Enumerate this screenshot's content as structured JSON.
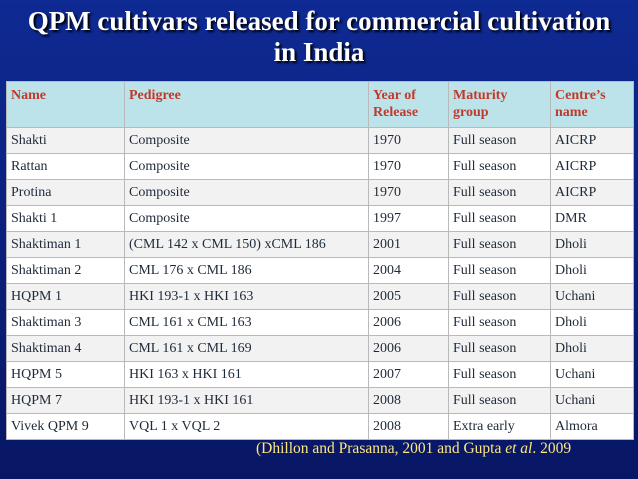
{
  "title": {
    "line1": "QPM cultivars released for commercial cultivation",
    "line2": "in India"
  },
  "table": {
    "headers": [
      {
        "line1": "Name",
        "line2": ""
      },
      {
        "line1": "Pedigree",
        "line2": ""
      },
      {
        "line1": "Year of",
        "line2": "Release"
      },
      {
        "line1": "Maturity",
        "line2": "group"
      },
      {
        "line1": "Centre’s",
        "line2": "name"
      }
    ],
    "rows": [
      [
        "Shakti",
        "Composite",
        "1970",
        "Full season",
        "AICRP"
      ],
      [
        "Rattan",
        "Composite",
        "1970",
        "Full season",
        "AICRP"
      ],
      [
        "Protina",
        "Composite",
        "1970",
        "Full season",
        "AICRP"
      ],
      [
        "Shakti 1",
        "Composite",
        "1997",
        "Full season",
        "DMR"
      ],
      [
        "Shaktiman 1",
        "(CML 142 x CML 150) xCML 186",
        "2001",
        "Full season",
        "Dholi"
      ],
      [
        "Shaktiman 2",
        "CML 176 x CML 186",
        "2004",
        "Full season",
        "Dholi"
      ],
      [
        "HQPM 1",
        "HKI 193-1 x HKI 163",
        "2005",
        "Full season",
        "Uchani"
      ],
      [
        "Shaktiman 3",
        "CML 161 x CML 163",
        "2006",
        "Full season",
        "Dholi"
      ],
      [
        "Shaktiman 4",
        "CML 161 x CML 169",
        "2006",
        "Full season",
        "Dholi"
      ],
      [
        "HQPM 5",
        "HKI 163 x HKI 161",
        "2007",
        "Full season",
        "Uchani"
      ],
      [
        "HQPM 7",
        "HKI 193-1 x HKI 161",
        "2008",
        "Full season",
        "Uchani"
      ],
      [
        "Vivek QPM 9",
        "VQL 1 x VQL 2",
        "2008",
        "Extra early",
        "Almora"
      ]
    ]
  },
  "citation": {
    "before": "(Dhillon and Prasanna, 2001 and Gupta ",
    "italic": "et al",
    "after": ". 2009"
  },
  "colors": {
    "background": "#0b1f7a",
    "title_text": "#ffffff",
    "header_fill": "#bde3ea",
    "header_text": "#c0392b",
    "citation_text": "#ffe680"
  }
}
